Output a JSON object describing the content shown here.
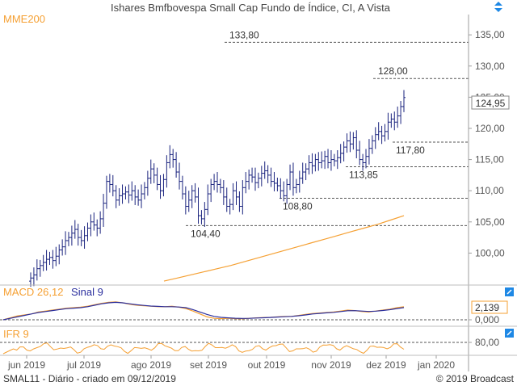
{
  "header": {
    "title": "Ishares Bmfbovespa Small Cap Fundo de Índice, CI, A Vista",
    "indicator_label": "MME200"
  },
  "footer": {
    "left": "SMAL11 - Diário - criado em 09/12/2019",
    "right": "© 2019 Broadcast"
  },
  "colors": {
    "price_bar": "#1a237e",
    "orange": "#f5a033",
    "blue_line": "#2b2f9e",
    "grid": "#cfcfcf",
    "dash": "#555555",
    "axis_text": "#555555",
    "button_blue": "#1e88e5"
  },
  "icons": {
    "scroll_updown": "up-down-arrows-icon",
    "panel_toggle": "toggle-square-icon"
  },
  "chart_data": [
    {
      "type": "ohlc",
      "panel": "price",
      "overlay_series": [
        {
          "name": "MME200"
        }
      ],
      "x_tick_labels": [
        "jun 2019",
        "jul 2019",
        "ago 2019",
        "set 2019",
        "out 2019",
        "nov 2019",
        "dez 2019",
        "jan 2020"
      ],
      "y_tick_labels": [
        "100,00",
        "105,00",
        "110,00",
        "115,00",
        "120,00",
        "125,00",
        "130,00",
        "135,00"
      ],
      "ylim": [
        95,
        138
      ],
      "last_value_label": "124,95",
      "levels": [
        {
          "value": 133.8,
          "label": "133,80"
        },
        {
          "value": 128.0,
          "label": "128,00"
        },
        {
          "value": 117.8,
          "label": "117,80"
        },
        {
          "value": 113.85,
          "label": "113,85"
        },
        {
          "value": 108.8,
          "label": "108,80"
        },
        {
          "value": 104.4,
          "label": "104,40"
        }
      ],
      "closes": [
        96.0,
        96.5,
        97.5,
        98.0,
        98.5,
        99.0,
        99.3,
        98.8,
        99.5,
        100.5,
        101.0,
        102.0,
        102.5,
        103.2,
        103.8,
        102.5,
        102.0,
        102.8,
        104.0,
        105.0,
        104.5,
        104.0,
        105.5,
        108.0,
        111.5,
        111.0,
        110.0,
        108.5,
        109.2,
        109.5,
        109.8,
        109.3,
        110.0,
        109.0,
        108.5,
        109.5,
        110.5,
        112.0,
        113.5,
        112.5,
        111.0,
        110.0,
        111.8,
        114.5,
        115.8,
        115.0,
        113.0,
        111.5,
        109.5,
        107.5,
        108.5,
        110.0,
        109.0,
        106.0,
        105.5,
        107.0,
        109.5,
        111.0,
        111.5,
        111.0,
        110.5,
        109.0,
        107.5,
        107.8,
        110.0,
        109.0,
        107.5,
        110.5,
        111.5,
        112.5,
        112.2,
        111.3,
        112.0,
        112.8,
        113.2,
        112.5,
        111.5,
        111.2,
        110.8,
        110.0,
        109.2,
        111.0,
        113.0,
        110.5,
        111.0,
        112.0,
        113.0,
        113.5,
        114.5,
        114.0,
        115.0,
        114.5,
        114.8,
        115.5,
        114.5,
        115.0,
        114.8,
        115.3,
        116.0,
        117.0,
        118.0,
        117.5,
        118.5,
        116.5,
        115.0,
        114.5,
        115.5,
        116.8,
        118.0,
        119.0,
        119.5,
        118.8,
        119.5,
        121.0,
        121.5,
        121.0,
        122.0,
        123.5,
        124.95
      ],
      "overlay_values": [
        95.5,
        96.0,
        96.5,
        97.0,
        97.5,
        98.0,
        98.6,
        99.2,
        99.8,
        100.4,
        101.0,
        101.6,
        102.2,
        102.8,
        103.4,
        104.0,
        104.6,
        105.3,
        106.0
      ]
    },
    {
      "type": "line",
      "panel": "macd",
      "title": "MACD 26,12",
      "series": [
        {
          "name": "MACD 26,12"
        },
        {
          "name": "Sinal 9"
        }
      ],
      "y_tick_labels": [
        "0,000"
      ],
      "last_value_label": "2,139",
      "levels": [
        {
          "value": 0.0,
          "label": "0,000"
        }
      ]
    },
    {
      "type": "line",
      "panel": "ifr",
      "title": "IFR 9",
      "y_tick_labels": [
        "80,00"
      ],
      "levels": [
        {
          "value": 80.0,
          "label": "80,00"
        }
      ]
    }
  ]
}
